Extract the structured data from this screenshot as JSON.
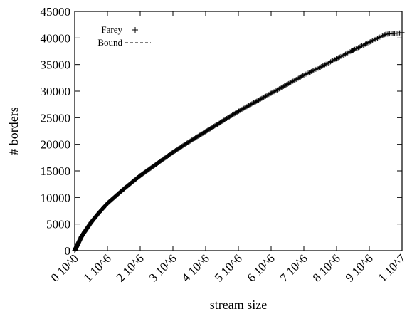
{
  "chart_data": {
    "type": "scatter",
    "title": "",
    "xlabel": "stream size",
    "ylabel": "# borders",
    "xlim": [
      0,
      10000000
    ],
    "ylim": [
      0,
      45000
    ],
    "grid": false,
    "legend_position": "top-left",
    "x_tick_labels": [
      "0 10^0",
      "1 10^6",
      "2 10^6",
      "3 10^6",
      "4 10^6",
      "5 10^6",
      "6 10^6",
      "7 10^6",
      "8 10^6",
      "9 10^6",
      "1 10^7"
    ],
    "y_tick_labels": [
      "0",
      "5000",
      "10000",
      "15000",
      "20000",
      "25000",
      "30000",
      "35000",
      "40000",
      "45000"
    ],
    "series": [
      {
        "name": "Farey",
        "marker": "+",
        "color": "#000000",
        "points": [
          [
            0,
            0
          ],
          [
            100000,
            1290
          ],
          [
            200000,
            2580
          ],
          [
            300000,
            3520
          ],
          [
            500000,
            5300
          ],
          [
            750000,
            7200
          ],
          [
            1000000,
            8900
          ],
          [
            1500000,
            11600
          ],
          [
            2000000,
            14100
          ],
          [
            2500000,
            16300
          ],
          [
            3000000,
            18500
          ],
          [
            3500000,
            20500
          ],
          [
            4000000,
            22400
          ],
          [
            4500000,
            24300
          ],
          [
            5000000,
            26200
          ],
          [
            5500000,
            27900
          ],
          [
            6000000,
            29600
          ],
          [
            6500000,
            31300
          ],
          [
            7000000,
            33000
          ],
          [
            7500000,
            34500
          ],
          [
            8000000,
            36100
          ],
          [
            8500000,
            37700
          ],
          [
            9000000,
            39200
          ],
          [
            9500000,
            40700
          ],
          [
            10000000,
            41000
          ]
        ]
      },
      {
        "name": "Bound",
        "line_style": "dashed",
        "color": "#000000",
        "points": []
      }
    ]
  }
}
